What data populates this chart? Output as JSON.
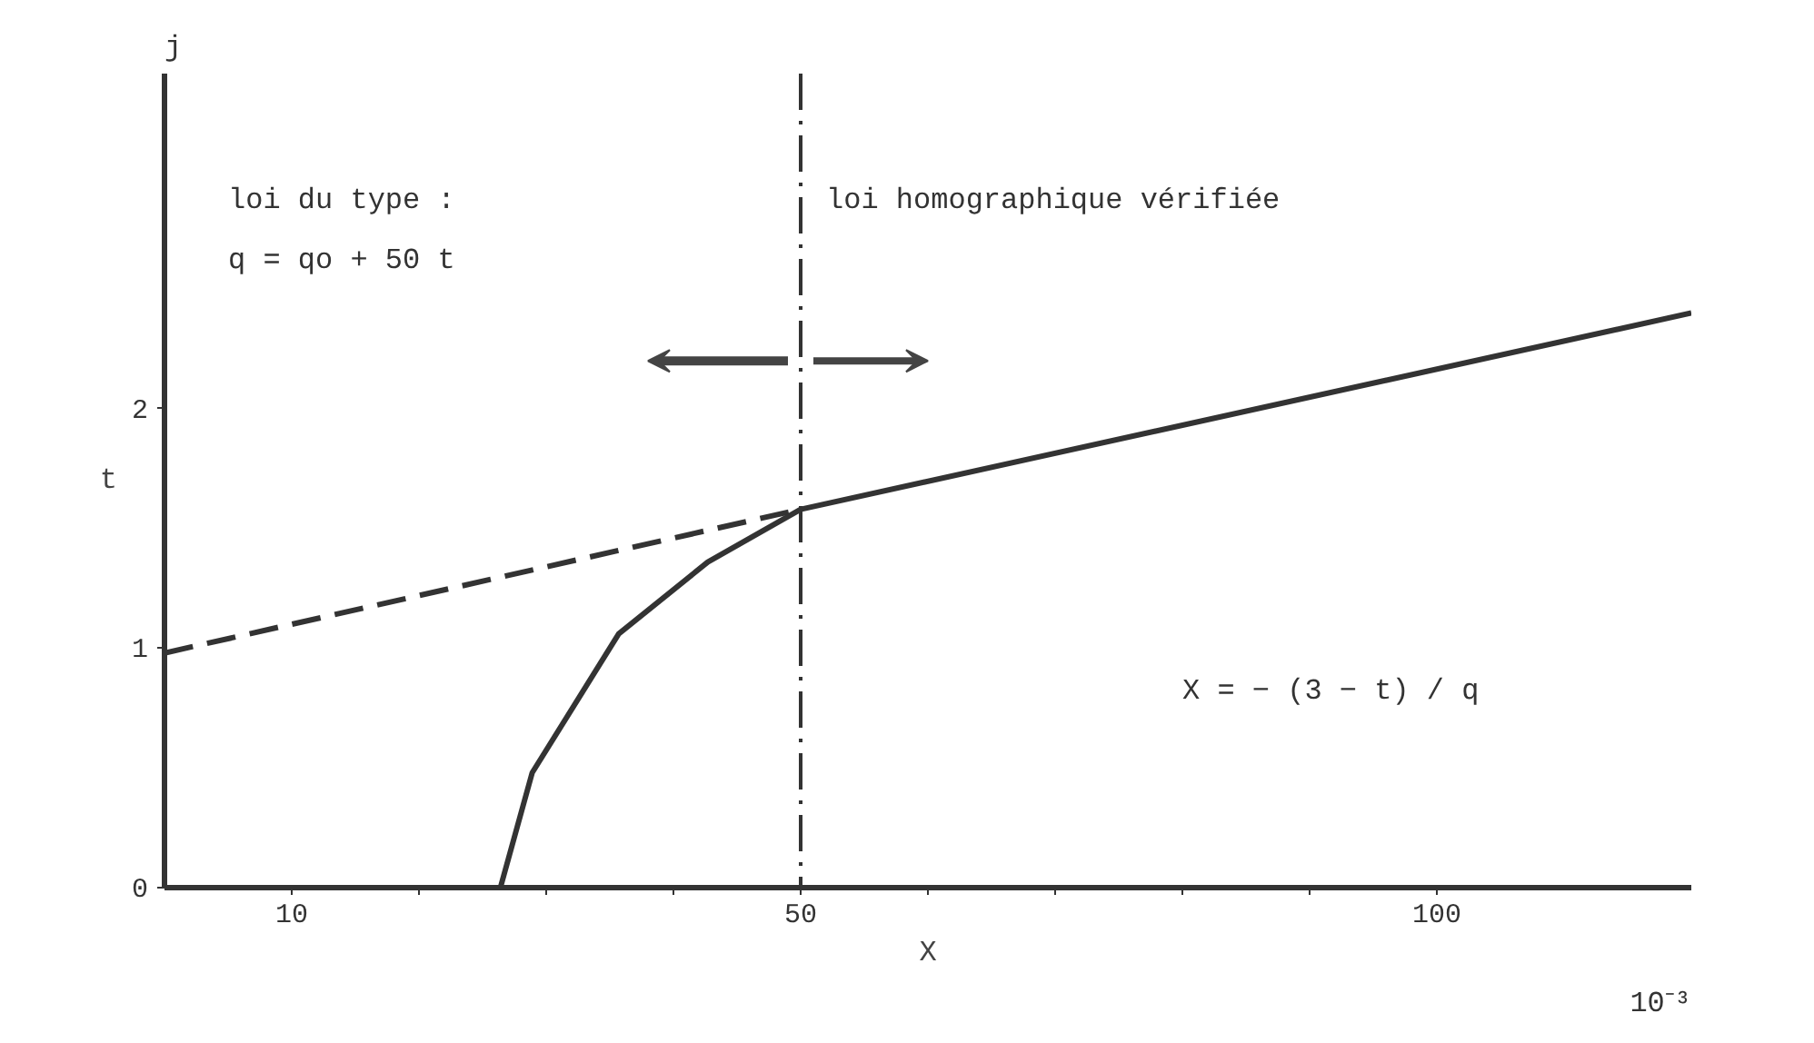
{
  "chart_data": {
    "type": "line",
    "xlabel": "X",
    "ylabel": "t",
    "xlim": [
      0,
      120
    ],
    "ylim": [
      0,
      3.4
    ],
    "xticks": [
      10,
      {
        "value": 20,
        "label": null
      },
      {
        "value": 30,
        "label": null
      },
      {
        "value": 40,
        "label": null
      },
      50,
      {
        "value": 60,
        "label": null
      },
      {
        "value": 70,
        "label": null
      },
      {
        "value": 80,
        "label": null
      },
      {
        "value": 90,
        "label": null
      },
      100
    ],
    "yticks": [
      0,
      1,
      2
    ],
    "series": [
      {
        "color": "#333333",
        "line_style": "dashed",
        "x": [
          0,
          50
        ],
        "values": [
          0.98,
          1.58
        ]
      },
      {
        "color": "#333333",
        "line_style": "solid",
        "x": [
          26.4,
          28.9,
          35.7,
          42.7,
          50,
          120
        ],
        "values": [
          0,
          0.48,
          1.06,
          1.36,
          1.58,
          2.4
        ]
      }
    ],
    "ref_lines": [
      {
        "axis": "x",
        "value": 50,
        "line_style": "dashdot",
        "color": "#333333"
      }
    ],
    "annotations": [
      "loi du type :",
      "q = qo + 50 t",
      "loi homographique vérifiée",
      "X = − (3 − t) / q",
      "10⁻³",
      "j"
    ],
    "grid": false
  }
}
